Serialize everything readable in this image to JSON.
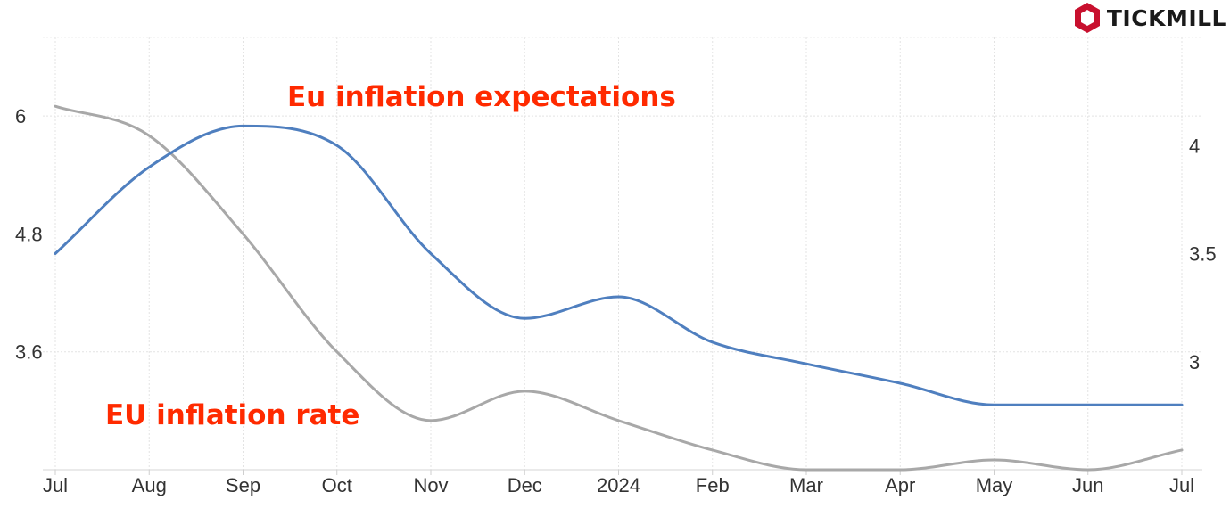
{
  "brand": {
    "name": "TICKMILL",
    "icon": "tickmill-hexagon-logo",
    "color": "#c8102e"
  },
  "chart_data": {
    "type": "line",
    "title": "",
    "xlabel": "",
    "x": [
      "Jul",
      "Aug",
      "Sep",
      "Oct",
      "Nov",
      "Dec",
      "2024",
      "Feb",
      "Mar",
      "Apr",
      "May",
      "Jun",
      "Jul"
    ],
    "y_left": {
      "ticks": [
        "3.6",
        "4.8",
        "6"
      ],
      "range": [
        2.4,
        6.8
      ]
    },
    "y_right": {
      "ticks": [
        "3",
        "3.5",
        "4"
      ],
      "range": [
        2.5,
        4.5
      ]
    },
    "grid": true,
    "series": [
      {
        "name": "Eu inflation expectations",
        "axis": "right",
        "color": "#4f7fbf",
        "values": [
          3.5,
          3.9,
          4.09,
          4.0,
          3.5,
          3.2,
          3.3,
          3.09,
          2.99,
          2.9,
          2.8,
          2.8,
          2.8
        ]
      },
      {
        "name": "EU inflation rate",
        "axis": "left",
        "color": "#a8a8a8",
        "values": [
          6.1,
          5.8,
          4.8,
          3.6,
          2.9,
          3.2,
          2.9,
          2.6,
          2.4,
          2.4,
          2.5,
          2.4,
          2.6
        ]
      }
    ],
    "annotations": [
      {
        "text": "Eu inflation expectations",
        "color": "#ff2a00"
      },
      {
        "text": "EU inflation rate",
        "color": "#ff2a00"
      }
    ]
  }
}
